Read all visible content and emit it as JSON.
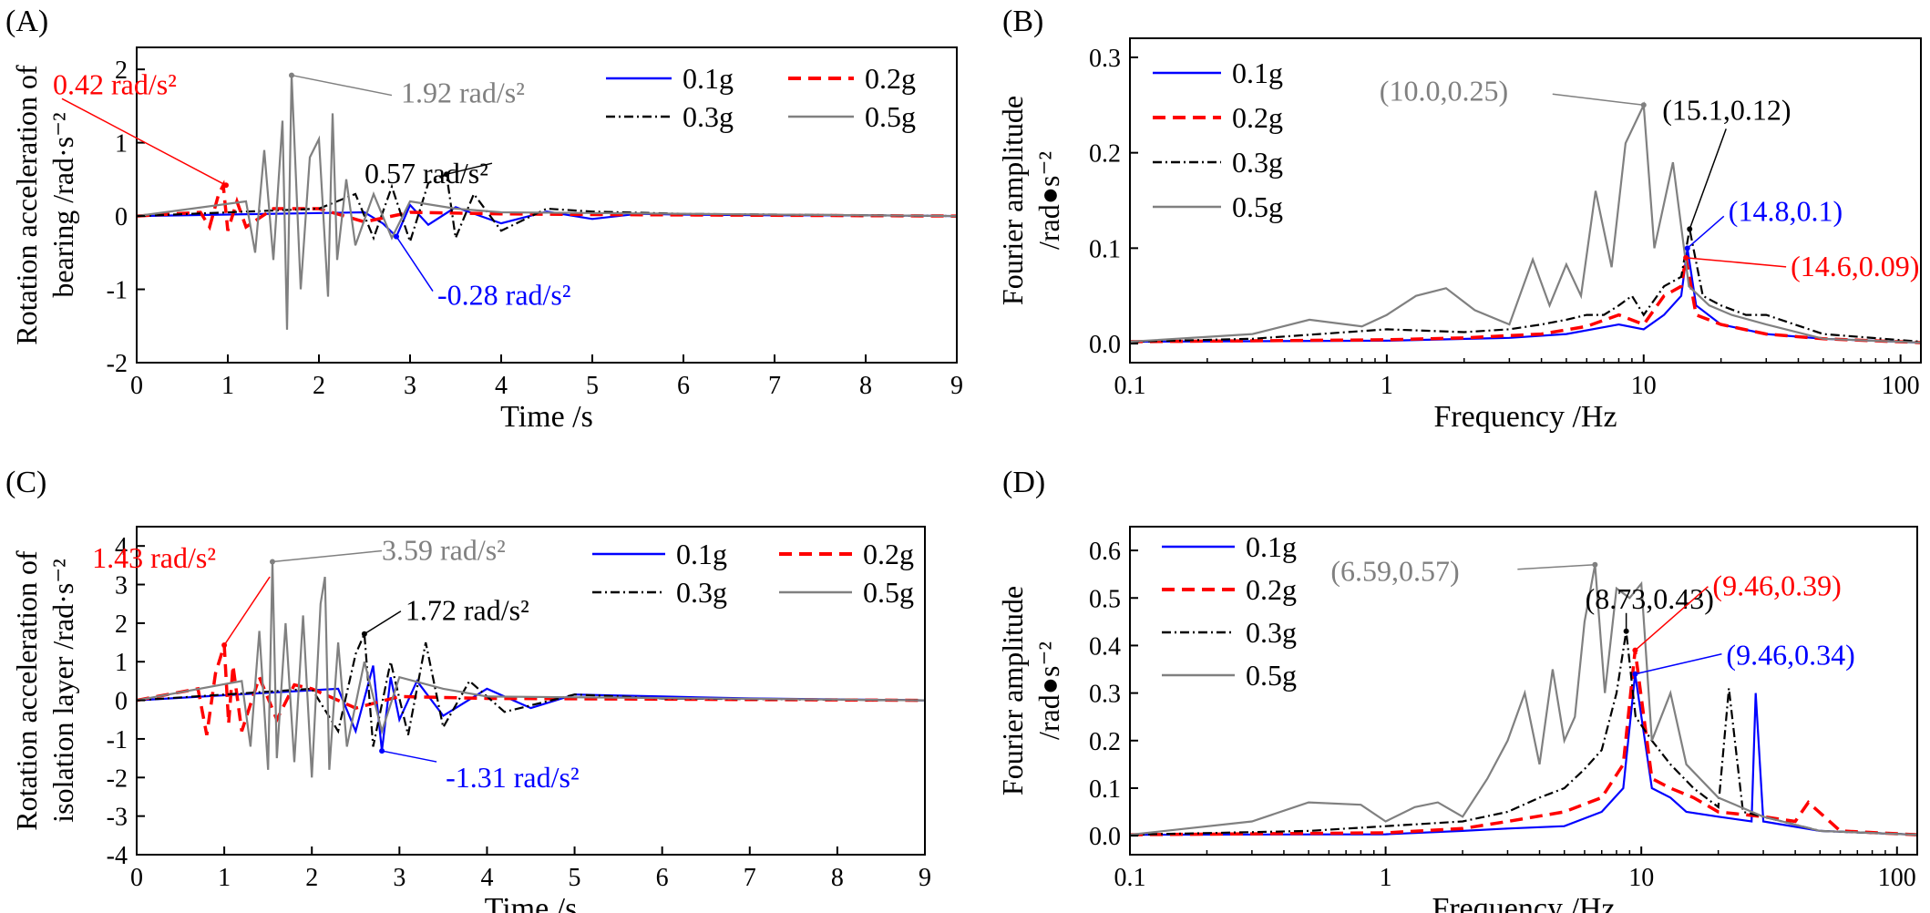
{
  "chart_data": [
    {
      "panel": "(A)",
      "type": "line",
      "title": "",
      "xlabel": "Time /s",
      "ylabel": [
        "Rotation acceleration of",
        "bearing /rad·s⁻²"
      ],
      "xscale": "linear",
      "xlim": [
        0,
        9
      ],
      "ylim": [
        -2,
        2.3
      ],
      "xticks": [
        0,
        1,
        2,
        3,
        4,
        5,
        6,
        7,
        8,
        9
      ],
      "yticks": [
        -2,
        -1,
        0,
        1,
        2
      ],
      "legend_position": "top-right",
      "series": [
        {
          "name": "0.1g",
          "color": "#0000ff",
          "style": "solid",
          "x": [
            0,
            2.5,
            2.7,
            2.85,
            3.0,
            3.2,
            3.5,
            4.0,
            4.5,
            5.0,
            5.5,
            6.0,
            7.0,
            8.0,
            9.0
          ],
          "y": [
            0,
            0.05,
            -0.1,
            -0.28,
            0.15,
            -0.12,
            0.12,
            -0.1,
            0.06,
            -0.04,
            0.03,
            0.02,
            0.01,
            0.01,
            0
          ]
        },
        {
          "name": "0.2g",
          "color": "#ff0000",
          "style": "dashed",
          "x": [
            0,
            0.7,
            0.8,
            0.9,
            0.95,
            1.0,
            1.1,
            1.2,
            1.5,
            2.0,
            2.5,
            3.0,
            4.0,
            5.0,
            9.0
          ],
          "y": [
            0,
            0.05,
            -0.15,
            0.3,
            0.42,
            -0.2,
            0.2,
            -0.15,
            0.1,
            0.1,
            -0.08,
            0.05,
            0.03,
            0.02,
            0
          ]
        },
        {
          "name": "0.3g",
          "color": "#000000",
          "style": "dashdot",
          "x": [
            0,
            2.0,
            2.4,
            2.6,
            2.8,
            3.0,
            3.2,
            3.4,
            3.5,
            3.7,
            4.0,
            4.5,
            5.0,
            6.0,
            9.0
          ],
          "y": [
            0,
            0.1,
            0.3,
            -0.3,
            0.4,
            -0.35,
            0.45,
            0.57,
            -0.3,
            0.3,
            -0.2,
            0.1,
            0.06,
            0.03,
            0
          ]
        },
        {
          "name": "0.5g",
          "color": "#808080",
          "style": "solid",
          "x": [
            0,
            1.2,
            1.3,
            1.4,
            1.5,
            1.6,
            1.65,
            1.7,
            1.8,
            1.9,
            2.0,
            2.1,
            2.15,
            2.2,
            2.3,
            2.4,
            2.6,
            2.8,
            3.0,
            3.5,
            4.0,
            9.0
          ],
          "y": [
            0,
            0.2,
            -0.5,
            0.9,
            -0.6,
            1.3,
            -1.55,
            1.92,
            -1.0,
            0.8,
            1.05,
            -1.1,
            1.4,
            -0.6,
            0.5,
            -0.4,
            0.3,
            -0.3,
            0.2,
            0.1,
            0.05,
            0
          ]
        }
      ],
      "annotations": [
        {
          "text": "0.42 rad/s²",
          "color": "#ff0000",
          "x": 0.98,
          "y": 0.42
        },
        {
          "text": "1.92 rad/s²",
          "color": "#808080",
          "x": 1.7,
          "y": 1.92
        },
        {
          "text": "0.57 rad/s²",
          "color": "#000000",
          "x": 3.4,
          "y": 0.57
        },
        {
          "text": "-0.28 rad/s²",
          "color": "#0000ff",
          "x": 2.85,
          "y": -0.28
        }
      ]
    },
    {
      "panel": "(B)",
      "type": "line",
      "title": "",
      "xlabel": "Frequency /Hz",
      "ylabel": [
        "Fourier amplitude",
        "/rad●s⁻²"
      ],
      "xscale": "log",
      "xlim": [
        0.1,
        120
      ],
      "ylim": [
        -0.02,
        0.32
      ],
      "xticks": [
        0.1,
        1,
        10,
        100
      ],
      "yticks": [
        0.0,
        0.1,
        0.2,
        0.3
      ],
      "legend_position": "top-left",
      "series": [
        {
          "name": "0.1g",
          "color": "#0000ff",
          "style": "solid",
          "x": [
            0.1,
            1,
            3,
            5,
            8,
            10,
            12,
            14,
            14.8,
            16,
            20,
            30,
            50,
            120
          ],
          "y": [
            0.002,
            0.003,
            0.006,
            0.01,
            0.02,
            0.015,
            0.03,
            0.05,
            0.1,
            0.04,
            0.02,
            0.01,
            0.005,
            0.001
          ]
        },
        {
          "name": "0.2g",
          "color": "#ff0000",
          "style": "dashed",
          "x": [
            0.1,
            1,
            2,
            4,
            6,
            8,
            10,
            12,
            14,
            14.6,
            16,
            20,
            30,
            50,
            120
          ],
          "y": [
            0.002,
            0.004,
            0.006,
            0.01,
            0.018,
            0.03,
            0.02,
            0.05,
            0.06,
            0.09,
            0.03,
            0.02,
            0.01,
            0.005,
            0.001
          ]
        },
        {
          "name": "0.3g",
          "color": "#000000",
          "style": "dashdot",
          "x": [
            0.1,
            0.3,
            1,
            2,
            3,
            4,
            5,
            6,
            7,
            8,
            9,
            10,
            12,
            14,
            15.1,
            17,
            20,
            25,
            30,
            50,
            120
          ],
          "y": [
            0.002,
            0.005,
            0.015,
            0.012,
            0.015,
            0.02,
            0.025,
            0.03,
            0.03,
            0.04,
            0.05,
            0.03,
            0.06,
            0.07,
            0.12,
            0.05,
            0.04,
            0.03,
            0.03,
            0.01,
            0.002
          ]
        },
        {
          "name": "0.5g",
          "color": "#808080",
          "style": "solid",
          "x": [
            0.1,
            0.3,
            0.5,
            0.8,
            1.0,
            1.3,
            1.7,
            2.2,
            3.0,
            3.7,
            4.3,
            5.0,
            5.7,
            6.5,
            7.5,
            8.5,
            10.0,
            11.0,
            13.0,
            15.0,
            18.0,
            22.0,
            30.0,
            50.0,
            120.0
          ],
          "y": [
            0.002,
            0.01,
            0.025,
            0.018,
            0.03,
            0.05,
            0.058,
            0.035,
            0.02,
            0.088,
            0.04,
            0.083,
            0.05,
            0.16,
            0.08,
            0.21,
            0.25,
            0.1,
            0.19,
            0.06,
            0.04,
            0.03,
            0.02,
            0.005,
            0.001
          ]
        }
      ],
      "annotations": [
        {
          "text": "(10.0,0.25)",
          "color": "#808080",
          "x": 10.0,
          "y": 0.25
        },
        {
          "text": "(15.1,0.12)",
          "color": "#000000",
          "x": 15.1,
          "y": 0.12
        },
        {
          "text": "(14.8,0.1)",
          "color": "#0000ff",
          "x": 14.8,
          "y": 0.1
        },
        {
          "text": "(14.6,0.09)",
          "color": "#ff0000",
          "x": 14.6,
          "y": 0.09
        }
      ]
    },
    {
      "panel": "(C)",
      "type": "line",
      "title": "",
      "xlabel": "Time /s",
      "ylabel": [
        "Rotation acceleration of",
        "isolation layer /rad·s⁻²"
      ],
      "xscale": "linear",
      "xlim": [
        0,
        9
      ],
      "ylim": [
        -4,
        4.5
      ],
      "xticks": [
        0,
        1,
        2,
        3,
        4,
        5,
        6,
        7,
        8,
        9
      ],
      "yticks": [
        -4,
        -3,
        -2,
        -1,
        0,
        1,
        2,
        3,
        4
      ],
      "legend_position": "top-right",
      "series": [
        {
          "name": "0.1g",
          "color": "#0000ff",
          "style": "solid",
          "x": [
            0,
            2.3,
            2.5,
            2.7,
            2.8,
            2.9,
            3.0,
            3.2,
            3.5,
            4.0,
            4.5,
            5.0,
            6.0,
            7.0,
            9.0
          ],
          "y": [
            0,
            0.3,
            -0.8,
            0.9,
            -1.31,
            0.6,
            -0.5,
            0.5,
            -0.4,
            0.3,
            -0.2,
            0.15,
            0.1,
            0.05,
            0
          ]
        },
        {
          "name": "0.2g",
          "color": "#ff0000",
          "style": "dashed",
          "x": [
            0,
            0.7,
            0.8,
            0.9,
            1.0,
            1.05,
            1.1,
            1.2,
            1.4,
            1.6,
            1.8,
            2.0,
            2.5,
            3.0,
            4.0,
            9.0
          ],
          "y": [
            0,
            0.3,
            -0.9,
            0.7,
            1.43,
            -0.6,
            0.9,
            -0.8,
            0.6,
            -0.5,
            0.4,
            0.3,
            -0.2,
            0.1,
            0.05,
            0
          ]
        },
        {
          "name": "0.3g",
          "color": "#000000",
          "style": "dashdot",
          "x": [
            0,
            2.0,
            2.3,
            2.5,
            2.6,
            2.7,
            2.9,
            3.1,
            3.3,
            3.5,
            3.8,
            4.2,
            5.0,
            6.0,
            9.0
          ],
          "y": [
            0,
            0.3,
            -0.8,
            1.2,
            1.72,
            -1.2,
            1.0,
            -0.9,
            1.5,
            -0.7,
            0.5,
            -0.3,
            0.15,
            0.05,
            0
          ]
        },
        {
          "name": "0.5g",
          "color": "#808080",
          "style": "solid",
          "x": [
            0,
            1.2,
            1.3,
            1.4,
            1.5,
            1.55,
            1.6,
            1.7,
            1.8,
            1.9,
            2.0,
            2.1,
            2.15,
            2.2,
            2.3,
            2.4,
            2.6,
            2.8,
            3.0,
            3.5,
            4.0,
            9.0
          ],
          "y": [
            0,
            0.5,
            -1.2,
            1.8,
            -1.8,
            3.59,
            -1.5,
            2.0,
            -1.6,
            2.2,
            -2.0,
            2.5,
            3.2,
            -1.8,
            1.5,
            -1.2,
            1.0,
            -0.8,
            0.6,
            0.3,
            0.1,
            0
          ]
        }
      ],
      "annotations": [
        {
          "text": "1.43 rad/s²",
          "color": "#ff0000",
          "x": 1.0,
          "y": 1.43
        },
        {
          "text": "3.59 rad/s²",
          "color": "#808080",
          "x": 1.55,
          "y": 3.59
        },
        {
          "text": "1.72 rad/s²",
          "color": "#000000",
          "x": 2.6,
          "y": 1.72
        },
        {
          "text": "-1.31 rad/s²",
          "color": "#0000ff",
          "x": 2.8,
          "y": -1.31
        }
      ]
    },
    {
      "panel": "(D)",
      "type": "line",
      "title": "",
      "xlabel": "Frequency /Hz",
      "ylabel": [
        "Fourier amplitude",
        "/rad●s⁻²"
      ],
      "xscale": "log",
      "xlim": [
        0.1,
        120
      ],
      "ylim": [
        -0.04,
        0.65
      ],
      "xticks": [
        0.1,
        1,
        10,
        100
      ],
      "yticks": [
        0.0,
        0.1,
        0.2,
        0.3,
        0.4,
        0.5,
        0.6
      ],
      "legend_position": "top-left",
      "series": [
        {
          "name": "0.1g",
          "color": "#0000ff",
          "style": "solid",
          "x": [
            0.1,
            1,
            2,
            3,
            5,
            7,
            8.5,
            9.46,
            11,
            13,
            15,
            20,
            27,
            28,
            30,
            50,
            120
          ],
          "y": [
            0.002,
            0.003,
            0.01,
            0.015,
            0.02,
            0.05,
            0.1,
            0.34,
            0.1,
            0.08,
            0.05,
            0.04,
            0.03,
            0.3,
            0.03,
            0.01,
            0.002
          ]
        },
        {
          "name": "0.2g",
          "color": "#ff0000",
          "style": "dashed",
          "x": [
            0.1,
            1,
            2,
            3,
            5,
            7,
            8.5,
            9.46,
            11,
            13,
            16,
            20,
            30,
            40,
            45,
            60,
            120
          ],
          "y": [
            0.002,
            0.006,
            0.015,
            0.03,
            0.05,
            0.08,
            0.15,
            0.39,
            0.12,
            0.1,
            0.08,
            0.05,
            0.04,
            0.03,
            0.07,
            0.01,
            0.002
          ]
        },
        {
          "name": "0.3g",
          "color": "#000000",
          "style": "dashdot",
          "x": [
            0.1,
            0.5,
            1,
            2,
            3,
            4,
            5,
            6,
            7,
            8,
            8.73,
            9.5,
            11,
            13,
            16,
            20,
            22,
            25,
            30,
            50,
            120
          ],
          "y": [
            0.002,
            0.01,
            0.02,
            0.03,
            0.05,
            0.08,
            0.1,
            0.14,
            0.18,
            0.3,
            0.43,
            0.25,
            0.2,
            0.15,
            0.1,
            0.06,
            0.31,
            0.05,
            0.04,
            0.01,
            0.002
          ]
        },
        {
          "name": "0.5g",
          "color": "#808080",
          "style": "solid",
          "x": [
            0.1,
            0.3,
            0.5,
            0.8,
            1.0,
            1.3,
            1.6,
            2.0,
            2.5,
            3.0,
            3.5,
            4.0,
            4.5,
            5.0,
            5.5,
            6.0,
            6.59,
            7.2,
            8.0,
            9.0,
            10.0,
            11.0,
            13.0,
            15.0,
            20.0,
            30.0,
            50.0,
            120.0
          ],
          "y": [
            0.002,
            0.03,
            0.07,
            0.065,
            0.03,
            0.06,
            0.07,
            0.04,
            0.12,
            0.2,
            0.3,
            0.15,
            0.35,
            0.2,
            0.25,
            0.45,
            0.57,
            0.3,
            0.52,
            0.5,
            0.53,
            0.2,
            0.3,
            0.15,
            0.08,
            0.04,
            0.01,
            0.002
          ]
        }
      ],
      "annotations": [
        {
          "text": "(6.59,0.57)",
          "color": "#808080",
          "x": 6.59,
          "y": 0.57
        },
        {
          "text": "(8.73,0.43)",
          "color": "#000000",
          "x": 8.73,
          "y": 0.43
        },
        {
          "text": "(9.46,0.39)",
          "color": "#ff0000",
          "x": 9.46,
          "y": 0.39
        },
        {
          "text": "(9.46,0.34)",
          "color": "#0000ff",
          "x": 9.46,
          "y": 0.34
        }
      ]
    }
  ]
}
